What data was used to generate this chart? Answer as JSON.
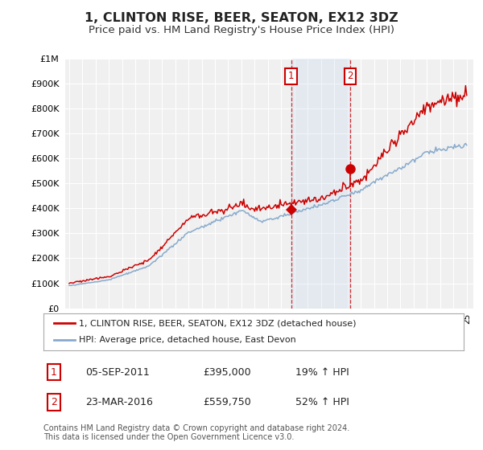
{
  "title": "1, CLINTON RISE, BEER, SEATON, EX12 3DZ",
  "subtitle": "Price paid vs. HM Land Registry's House Price Index (HPI)",
  "title_fontsize": 11.5,
  "subtitle_fontsize": 9.5,
  "ylim": [
    0,
    1000000
  ],
  "yticks": [
    0,
    100000,
    200000,
    300000,
    400000,
    500000,
    600000,
    700000,
    800000,
    900000,
    1000000
  ],
  "ytick_labels": [
    "£0",
    "£100K",
    "£200K",
    "£300K",
    "£400K",
    "£500K",
    "£600K",
    "£700K",
    "£800K",
    "£900K",
    "£1M"
  ],
  "background_color": "#ffffff",
  "plot_bg_color": "#f0f0f0",
  "grid_color": "#ffffff",
  "property_color": "#cc0000",
  "hpi_color": "#88aacc",
  "transaction1_year": 2011.75,
  "transaction1_price": 395000,
  "transaction2_year": 2016.2,
  "transaction2_price": 559750,
  "legend_property": "1, CLINTON RISE, BEER, SEATON, EX12 3DZ (detached house)",
  "legend_hpi": "HPI: Average price, detached house, East Devon",
  "footer": "Contains HM Land Registry data © Crown copyright and database right 2024.\nThis data is licensed under the Open Government Licence v3.0.",
  "table_row1": [
    "1",
    "05-SEP-2011",
    "£395,000",
    "19% ↑ HPI"
  ],
  "table_row2": [
    "2",
    "23-MAR-2016",
    "£559,750",
    "52% ↑ HPI"
  ]
}
